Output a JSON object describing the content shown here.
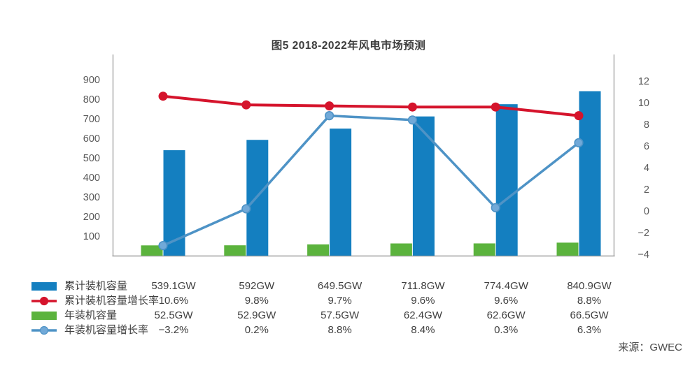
{
  "title": "图5 2018-2022年风电市场预测",
  "source": "来源：GWEC",
  "colors": {
    "cumulative_bar": "#147FC0",
    "cumulative_growth_line": "#D5142C",
    "annual_bar": "#5BB33D",
    "annual_growth_line": "#4E93C6",
    "annual_growth_marker_fill": "#71A9D8",
    "axis_side_line": "#C4C4C4",
    "axis_bottom_line": "#9F9F9F",
    "axis_text": "#595959",
    "table_text": "#3F3F3F"
  },
  "chart_data": {
    "type": "combo bar+line",
    "num_categories": 6,
    "x_labels_visible": false,
    "left_axis": {
      "ticks": [
        "900",
        "800",
        "700",
        "600",
        "500",
        "400",
        "300",
        "200",
        "100"
      ],
      "tick_values": [
        900,
        800,
        700,
        600,
        500,
        400,
        300,
        200,
        100
      ],
      "min": 0,
      "max": 900,
      "grid": false
    },
    "right_axis": {
      "ticks": [
        "12",
        "10",
        "8",
        "6",
        "4",
        "2",
        "0",
        "−2",
        "−4"
      ],
      "tick_values": [
        12,
        10,
        8,
        6,
        4,
        2,
        0,
        -2,
        -4
      ],
      "min": -4,
      "max": 12,
      "grid": false
    },
    "legend_position": "bottom-left table",
    "series": [
      {
        "name": "累计装机容量",
        "type": "bar",
        "axis": "left",
        "slot": "right",
        "color": "#147FC0",
        "values": [
          539.1,
          592,
          649.5,
          711.8,
          774.4,
          840.9
        ],
        "labels": [
          "539.1GW",
          "592GW",
          "649.5GW",
          "711.8GW",
          "774.4GW",
          "840.9GW"
        ]
      },
      {
        "name": "累计装机容量增长率",
        "type": "line",
        "axis": "right",
        "color": "#D5142C",
        "marker_fill": "#D5142C",
        "values": [
          10.6,
          9.8,
          9.7,
          9.6,
          9.6,
          8.8
        ],
        "labels": [
          "10.6%",
          "9.8%",
          "9.7%",
          "9.6%",
          "9.6%",
          "8.8%"
        ]
      },
      {
        "name": "年装机容量",
        "type": "bar",
        "axis": "left",
        "slot": "left",
        "color": "#5BB33D",
        "values": [
          52.5,
          52.9,
          57.5,
          62.4,
          62.6,
          66.5
        ],
        "labels": [
          "52.5GW",
          "52.9GW",
          "57.5GW",
          "62.4GW",
          "62.6GW",
          "66.5GW"
        ]
      },
      {
        "name": "年装机容量增长率",
        "type": "line",
        "axis": "right",
        "color": "#4E93C6",
        "marker_fill": "#71A9D8",
        "values": [
          -3.2,
          0.2,
          8.8,
          8.4,
          0.3,
          6.3
        ],
        "labels": [
          "−3.2%",
          "0.2%",
          "8.8%",
          "8.4%",
          "0.3%",
          "6.3%"
        ]
      }
    ]
  }
}
